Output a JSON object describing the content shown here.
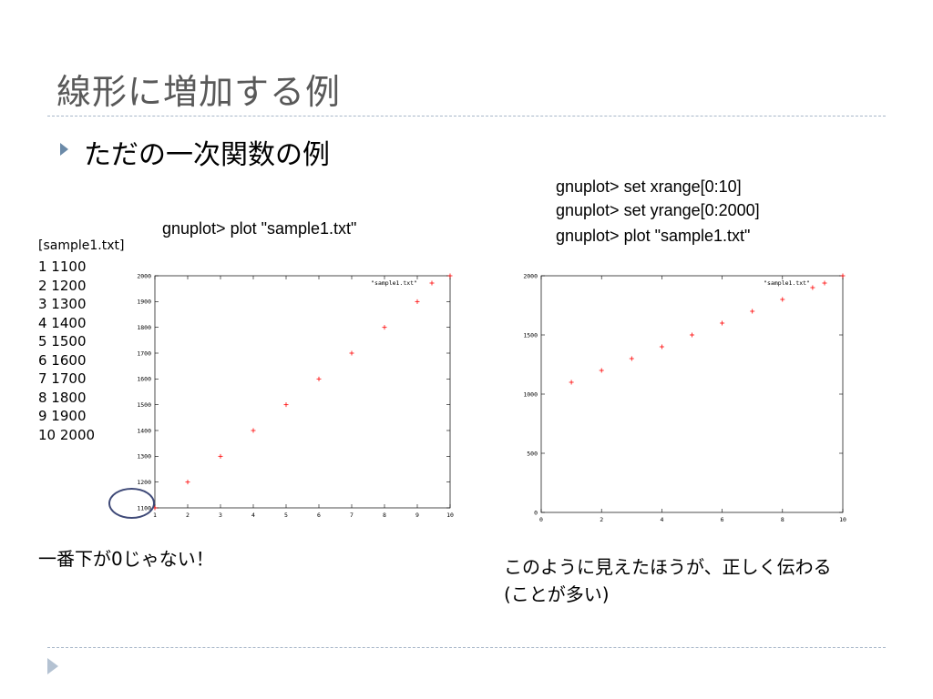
{
  "slide": {
    "title": "線形に増加する例",
    "bullet": "ただの一次関数の例",
    "note_left": "一番下が0じゃない！",
    "note_right_line1": "このように見えたほうが、正しく伝わる",
    "note_right_line2": "(ことが多い)"
  },
  "commands": {
    "left": "gnuplot> plot \"sample1.txt\"",
    "right": [
      "gnuplot> set xrange[0:10]",
      "gnuplot> set yrange[0:2000]",
      "gnuplot> plot \"sample1.txt\""
    ]
  },
  "file": {
    "title": "[sample1.txt]",
    "rows": [
      "1 1100",
      "2 1200",
      "3 1300",
      "4 1400",
      "5 1500",
      "6 1600",
      "7 1700",
      "8 1800",
      "9 1900",
      "10 2000"
    ]
  },
  "chart_data": [
    {
      "type": "scatter",
      "title": "",
      "xlabel": "",
      "ylabel": "",
      "xlim": [
        1,
        10
      ],
      "ylim": [
        1100,
        2000
      ],
      "xticks": [
        1,
        2,
        3,
        4,
        5,
        6,
        7,
        8,
        9,
        10
      ],
      "yticks": [
        1100,
        1200,
        1300,
        1400,
        1500,
        1600,
        1700,
        1800,
        1900,
        2000
      ],
      "grid": false,
      "legend_position": "top-right",
      "series": [
        {
          "name": "\"sample1.txt\"",
          "color": "#ff0000",
          "marker": "+",
          "x": [
            1,
            2,
            3,
            4,
            5,
            6,
            7,
            8,
            9,
            10
          ],
          "y": [
            1100,
            1200,
            1300,
            1400,
            1500,
            1600,
            1700,
            1800,
            1900,
            2000
          ]
        }
      ]
    },
    {
      "type": "scatter",
      "title": "",
      "xlabel": "",
      "ylabel": "",
      "xlim": [
        0,
        10
      ],
      "ylim": [
        0,
        2000
      ],
      "xticks": [
        0,
        2,
        4,
        6,
        8,
        10
      ],
      "yticks": [
        0,
        500,
        1000,
        1500,
        2000
      ],
      "grid": false,
      "legend_position": "top-right",
      "series": [
        {
          "name": "\"sample1.txt\"",
          "color": "#ff0000",
          "marker": "+",
          "x": [
            1,
            2,
            3,
            4,
            5,
            6,
            7,
            8,
            9,
            10
          ],
          "y": [
            1100,
            1200,
            1300,
            1400,
            1500,
            1600,
            1700,
            1800,
            1900,
            2000
          ]
        }
      ]
    }
  ]
}
